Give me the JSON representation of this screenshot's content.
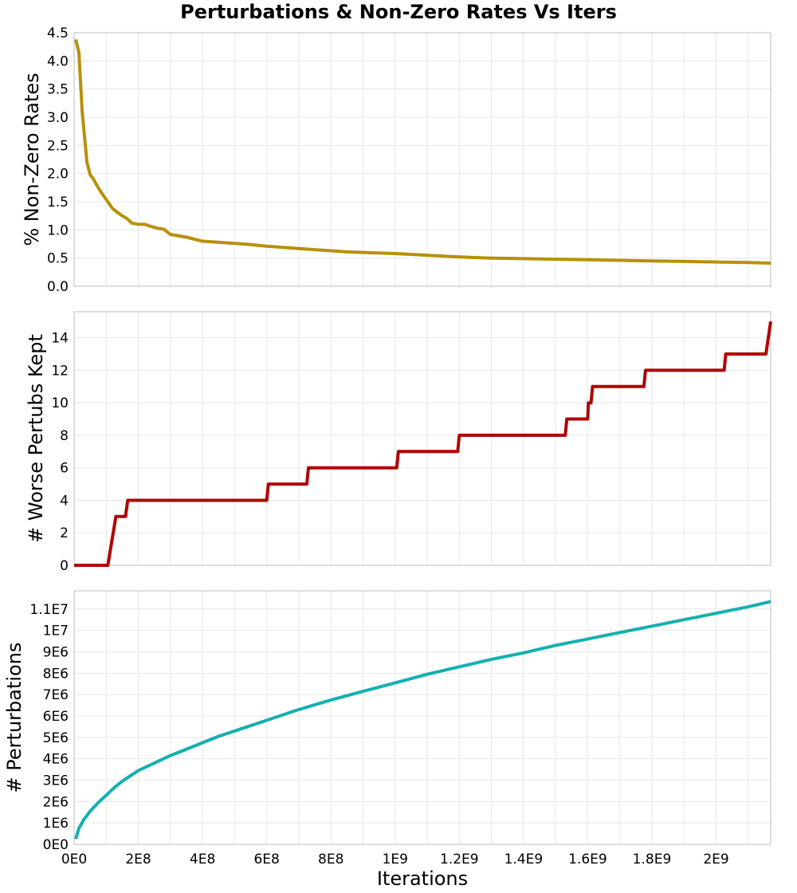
{
  "title": "Perturbations & Non-Zero Rates Vs Iters",
  "xlabel": "Iterations",
  "x_tick_labels": [
    "0E0",
    "2E8",
    "4E8",
    "6E8",
    "8E8",
    "1E9",
    "1.2E9",
    "1.4E9",
    "1.6E9",
    "1.8E9",
    "2E9"
  ],
  "colors": {
    "rates": "#b8900a",
    "worse": "#b20000",
    "perturbations": "#14b0b0",
    "grid": "#e8e8e8",
    "frame": "#bdbdbd"
  },
  "chart_data": [
    {
      "type": "line",
      "ylabel": "% Non-Zero Rates",
      "xlim": [
        0,
        2170000000
      ],
      "ylim": [
        0,
        4.5
      ],
      "y_ticks": [
        0,
        0.5,
        1.0,
        1.5,
        2.0,
        2.5,
        3.0,
        3.5,
        4.0,
        4.5
      ],
      "y_tick_labels": [
        "0.0",
        "0.5",
        "1.0",
        "1.5",
        "2.0",
        "2.5",
        "3.0",
        "3.5",
        "4.0",
        "4.5"
      ],
      "series": [
        {
          "color": "#b8900a",
          "x": [
            5000000,
            15000000,
            25000000,
            40000000,
            50000000,
            60000000,
            75000000,
            90000000,
            105000000,
            120000000,
            135000000,
            150000000,
            165000000,
            180000000,
            200000000,
            220000000,
            240000000,
            260000000,
            280000000,
            300000000,
            350000000,
            400000000,
            450000000,
            500000000,
            550000000,
            600000000,
            650000000,
            700000000,
            750000000,
            800000000,
            850000000,
            900000000,
            1000000000,
            1100000000,
            1200000000,
            1300000000,
            1400000000,
            1500000000,
            1600000000,
            1700000000,
            1800000000,
            1900000000,
            2000000000,
            2100000000,
            2170000000
          ],
          "y": [
            4.38,
            4.15,
            3.1,
            2.2,
            1.98,
            1.9,
            1.75,
            1.62,
            1.5,
            1.38,
            1.31,
            1.25,
            1.2,
            1.12,
            1.1,
            1.1,
            1.06,
            1.03,
            1.01,
            0.92,
            0.87,
            0.8,
            0.78,
            0.76,
            0.74,
            0.71,
            0.69,
            0.67,
            0.65,
            0.63,
            0.61,
            0.6,
            0.58,
            0.55,
            0.52,
            0.5,
            0.49,
            0.48,
            0.47,
            0.46,
            0.45,
            0.44,
            0.43,
            0.42,
            0.41
          ]
        }
      ]
    },
    {
      "type": "line",
      "ylabel": "# Worse Pertubs Kept",
      "xlim": [
        0,
        2170000000
      ],
      "ylim": [
        0,
        15.6
      ],
      "y_ticks": [
        0,
        2,
        4,
        6,
        8,
        10,
        12,
        14
      ],
      "y_tick_labels": [
        "0",
        "2",
        "4",
        "6",
        "8",
        "10",
        "12",
        "14"
      ],
      "series": [
        {
          "color": "#b20000",
          "x": [
            0,
            105000000,
            130000000,
            160000000,
            167000000,
            600000000,
            605000000,
            725000000,
            730000000,
            1005000000,
            1010000000,
            1195000000,
            1200000000,
            1530000000,
            1535000000,
            1600000000,
            1602000000,
            1610000000,
            1615000000,
            1775000000,
            1780000000,
            2025000000,
            2030000000,
            2155000000,
            2170000000
          ],
          "y": [
            0,
            0,
            3,
            3,
            4,
            4,
            5,
            5,
            6,
            6,
            7,
            7,
            8,
            8,
            9,
            9,
            10,
            10,
            11,
            11,
            12,
            12,
            13,
            13,
            15
          ]
        }
      ]
    },
    {
      "type": "line",
      "ylabel": "# Perturbations",
      "xlim": [
        0,
        2170000000
      ],
      "ylim": [
        0,
        11850000
      ],
      "y_ticks": [
        0,
        1000000,
        2000000,
        3000000,
        4000000,
        5000000,
        6000000,
        7000000,
        8000000,
        9000000,
        10000000,
        11000000
      ],
      "y_tick_labels": [
        "0E0",
        "1E6",
        "2E6",
        "3E6",
        "4E6",
        "5E6",
        "6E6",
        "7E6",
        "8E6",
        "9E6",
        "1E7",
        "1.1E7"
      ],
      "series": [
        {
          "color": "#14b0b0",
          "x": [
            5000000,
            15000000,
            30000000,
            50000000,
            75000000,
            100000000,
            125000000,
            150000000,
            175000000,
            200000000,
            250000000,
            300000000,
            350000000,
            400000000,
            450000000,
            500000000,
            600000000,
            700000000,
            800000000,
            900000000,
            1000000000,
            1100000000,
            1200000000,
            1300000000,
            1400000000,
            1500000000,
            1600000000,
            1700000000,
            1800000000,
            1900000000,
            2000000000,
            2100000000,
            2170000000
          ],
          "y": [
            250000,
            750000,
            1150000,
            1550000,
            1950000,
            2300000,
            2650000,
            2950000,
            3200000,
            3450000,
            3800000,
            4150000,
            4450000,
            4750000,
            5050000,
            5300000,
            5800000,
            6300000,
            6750000,
            7150000,
            7550000,
            7950000,
            8300000,
            8650000,
            8950000,
            9300000,
            9600000,
            9900000,
            10200000,
            10500000,
            10800000,
            11100000,
            11350000
          ]
        }
      ]
    }
  ]
}
